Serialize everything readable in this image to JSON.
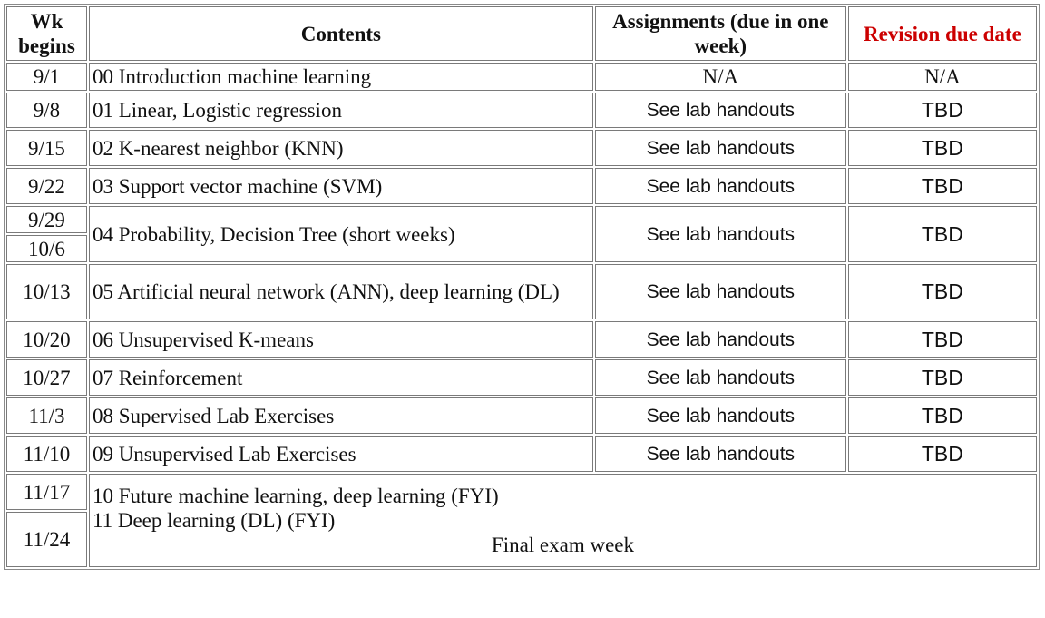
{
  "headers": {
    "wk": "Wk begins",
    "contents": "Contents",
    "assignments": "Assignments (due in one week)",
    "revision": "Revision due date"
  },
  "accent_color": "#cc0000",
  "rows": [
    {
      "wk": "9/1",
      "content": "00 Introduction machine learning",
      "assignment": "N/A",
      "revision": "N/A"
    },
    {
      "wk": "9/8",
      "content": "01 Linear, Logistic regression",
      "assignment": "See lab handouts",
      "revision": "TBD"
    },
    {
      "wk": "9/15",
      "content": "02 K-nearest neighbor (KNN)",
      "assignment": "See lab handouts",
      "revision": "TBD"
    },
    {
      "wk": "9/22",
      "content": "03 Support vector machine (SVM)",
      "assignment": "See lab handouts",
      "revision": "TBD"
    },
    {
      "wk": "9/29",
      "wk2": "10/6",
      "content": "04 Probability, Decision Tree (short weeks)",
      "assignment": "See lab handouts",
      "revision": "TBD"
    },
    {
      "wk": "10/13",
      "content": "05 Artificial neural network (ANN), deep learning (DL)",
      "assignment": "See lab handouts",
      "revision": "TBD"
    },
    {
      "wk": "10/20",
      "content": "06 Unsupervised K-means",
      "assignment": "See lab handouts",
      "revision": "TBD"
    },
    {
      "wk": "10/27",
      "content": "07 Reinforcement",
      "assignment": "See lab handouts",
      "revision": "TBD"
    },
    {
      "wk": "11/3",
      "content": "08 Supervised Lab Exercises",
      "assignment": "See lab handouts",
      "revision": "TBD"
    },
    {
      "wk": "11/10",
      "content": "09 Unsupervised Lab Exercises",
      "assignment": "See lab handouts",
      "revision": "TBD"
    }
  ],
  "final": {
    "wk1": "11/17",
    "wk2": "11/24",
    "line1": "10 Future machine learning, deep learning (FYI)",
    "line2": "11 Deep learning (DL) (FYI)",
    "line3": "Final exam week"
  }
}
